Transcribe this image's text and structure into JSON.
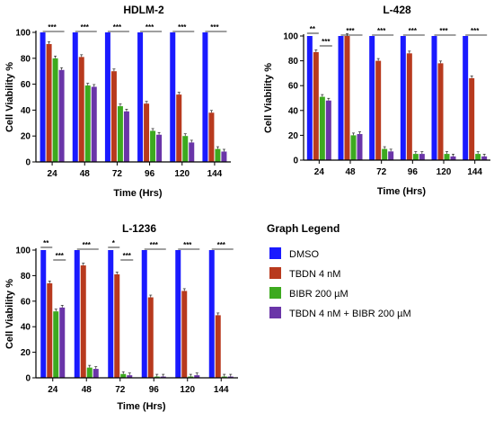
{
  "chart_data": [
    {
      "type": "bar",
      "title": "HDLM-2",
      "xlabel": "Time (Hrs)",
      "ylabel": "Cell Viability %",
      "ylim": [
        0,
        100
      ],
      "yticks": [
        0,
        20,
        40,
        60,
        80,
        100
      ],
      "categories": [
        "24",
        "48",
        "72",
        "96",
        "120",
        "144"
      ],
      "series": [
        {
          "name": "DMSO",
          "values": [
            100,
            100,
            100,
            100,
            100,
            100
          ]
        },
        {
          "name": "TBDN 4 nM",
          "values": [
            91,
            81,
            70,
            45,
            52,
            38
          ]
        },
        {
          "name": "BIBR 200 µM",
          "values": [
            80,
            59,
            43,
            24,
            20,
            10
          ]
        },
        {
          "name": "TBDN 4 nM + BIBR 200 µM",
          "values": [
            71,
            58,
            39,
            21,
            15,
            8
          ]
        }
      ],
      "significance": [
        "***",
        "***",
        "***",
        "***",
        "***",
        "***"
      ]
    },
    {
      "type": "bar",
      "title": "L-428",
      "xlabel": "Time (Hrs)",
      "ylabel": "Cell Viability %",
      "ylim": [
        0,
        100
      ],
      "yticks": [
        0,
        20,
        40,
        60,
        80,
        100
      ],
      "categories": [
        "24",
        "48",
        "72",
        "96",
        "120",
        "144"
      ],
      "series": [
        {
          "name": "DMSO",
          "values": [
            100,
            100,
            100,
            100,
            100,
            100
          ]
        },
        {
          "name": "TBDN 4 nM",
          "values": [
            87,
            100,
            80,
            86,
            78,
            66
          ]
        },
        {
          "name": "BIBR 200 µM",
          "values": [
            51,
            20,
            9,
            5,
            5,
            5
          ]
        },
        {
          "name": "TBDN 4 nM + BIBR 200 µM",
          "values": [
            48,
            21,
            7,
            5,
            3,
            3
          ]
        }
      ],
      "significance": [
        "**|***",
        "***",
        "***",
        "***",
        "***",
        "***"
      ]
    },
    {
      "type": "bar",
      "title": "L-1236",
      "xlabel": "Time (Hrs)",
      "ylabel": "Cell Viability %",
      "ylim": [
        0,
        100
      ],
      "yticks": [
        0,
        20,
        40,
        60,
        80,
        100
      ],
      "categories": [
        "24",
        "48",
        "72",
        "96",
        "120",
        "144"
      ],
      "series": [
        {
          "name": "DMSO",
          "values": [
            100,
            100,
            100,
            100,
            100,
            100
          ]
        },
        {
          "name": "TBDN 4 nM",
          "values": [
            74,
            88,
            81,
            63,
            68,
            49
          ]
        },
        {
          "name": "BIBR 200 µM",
          "values": [
            52,
            8,
            3,
            1,
            1,
            1
          ]
        },
        {
          "name": "TBDN 4 nM + BIBR 200 µM",
          "values": [
            55,
            7,
            2,
            1,
            2,
            1
          ]
        }
      ],
      "significance": [
        "**|***",
        "***",
        "*|***",
        "***",
        "***",
        "***"
      ]
    }
  ],
  "legend": {
    "title": "Graph Legend",
    "items": [
      {
        "label": "DMSO",
        "color": "#1a1aff"
      },
      {
        "label": "TBDN 4 nM",
        "color": "#b83a1e"
      },
      {
        "label": "BIBR 200 µM",
        "color": "#3daa1f"
      },
      {
        "label": "TBDN 4 nM + BIBR 200 µM",
        "color": "#6a35a8"
      }
    ]
  }
}
